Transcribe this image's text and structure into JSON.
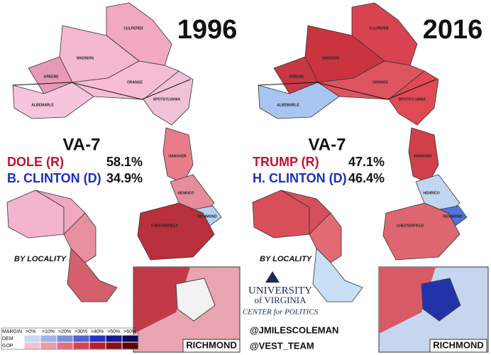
{
  "maps": [
    {
      "year": "1996",
      "district": "VA-7",
      "candidates": [
        {
          "name": "DOLE (R)",
          "share": "58.1%"
        },
        {
          "name": "B. CLINTON (D)",
          "share": "34.9%"
        }
      ],
      "counties": [
        "CULPEPER",
        "MADISON",
        "GREENE",
        "ORANGE",
        "ALBEMARLE",
        "SPOTSYLVANIA",
        "HANOVER",
        "HENRICO",
        "RICHMOND",
        "CHESTERFIELD"
      ],
      "subtitle": "BY LOCALITY",
      "inset": "RICHMOND"
    },
    {
      "year": "2016",
      "district": "VA-7",
      "candidates": [
        {
          "name": "TRUMP (R)",
          "share": "47.1%"
        },
        {
          "name": "H. CLINTON (D)",
          "share": "46.4%"
        }
      ],
      "counties": [
        "CULPEPER",
        "MADISON",
        "GREENE",
        "ORANGE",
        "ALBEMARLE",
        "SPOTSYLVANIA",
        "HANOVER",
        "HENRICO",
        "RICHMOND",
        "CHESTERFIELD"
      ],
      "subtitle": "BY LOCALITY",
      "inset": "RICHMOND"
    }
  ],
  "logo": {
    "line1": "UNIVERSITY",
    "line2": "of VIRGINIA",
    "line3": "CENTER for POLITICS"
  },
  "credits": [
    "@JMILESCOLEMAN",
    "@VEST_TEAM"
  ],
  "legend": {
    "title": "MARGIN",
    "levels": [
      ">0%",
      ">10%",
      ">20%",
      ">30%",
      ">40%",
      ">50%",
      ">60%"
    ],
    "rows": [
      "DEM",
      "GOP"
    ]
  }
}
